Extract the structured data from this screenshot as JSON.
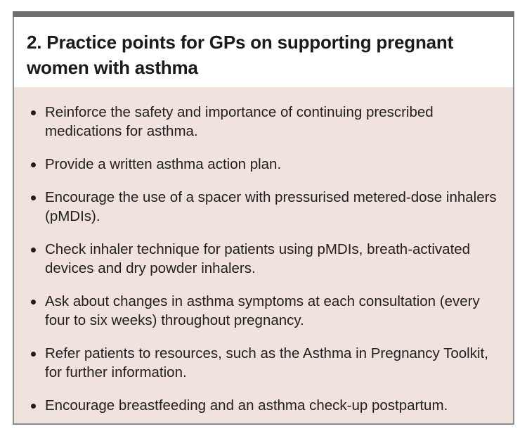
{
  "box": {
    "title": "2. Practice points for GPs on supporting pregnant women with asthma",
    "items": [
      "Reinforce the safety and importance of continuing prescribed medications for asthma.",
      "Provide a written asthma action plan.",
      "Encourage the use of a spacer with pressurised metered-dose inhalers (pMDIs).",
      "Check inhaler technique for patients using pMDIs, breath-activated devices and dry powder inhalers.",
      "Ask about changes in asthma symptoms at each consultation (every four to six weeks) throughout pregnancy.",
      "Refer patients to resources, such as the Asthma in Pregnancy Toolkit, for further information.",
      "Encourage breastfeeding and an asthma check-up postpartum."
    ],
    "colors": {
      "bar": "#6d6e71",
      "background": "#f0e2dd",
      "border": "#8a8b8d"
    }
  }
}
